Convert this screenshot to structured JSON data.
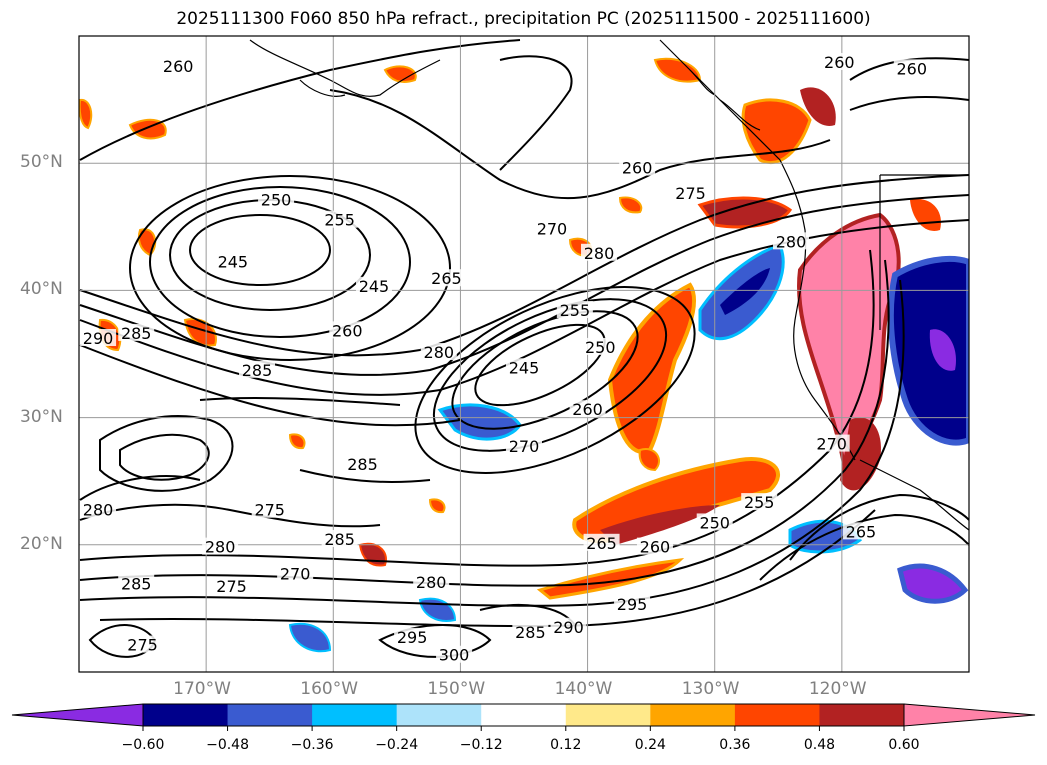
{
  "title": "2025111300 F060 850 hPa refract., precipitation PC (2025111500 - 2025111600)",
  "map": {
    "lon_range": [
      -180,
      -110
    ],
    "lat_range": [
      10,
      60
    ],
    "lat_ticks": [
      {
        "value": 50,
        "label": "50°N"
      },
      {
        "value": 40,
        "label": "40°N"
      },
      {
        "value": 30,
        "label": "30°N"
      },
      {
        "value": 20,
        "label": "20°N"
      }
    ],
    "lon_ticks": [
      {
        "value": -170,
        "label": "170°W"
      },
      {
        "value": -160,
        "label": "160°W"
      },
      {
        "value": -150,
        "label": "150°W"
      },
      {
        "value": -140,
        "label": "140°W"
      },
      {
        "value": -130,
        "label": "130°W"
      },
      {
        "value": -120,
        "label": "120°W"
      }
    ],
    "gridlines": true,
    "contour_labels": [
      {
        "text": "260",
        "lon": -172.2,
        "lat": 57.5
      },
      {
        "text": "260",
        "lon": -120.2,
        "lat": 57.8
      },
      {
        "text": "260",
        "lon": -114.5,
        "lat": 57.3
      },
      {
        "text": "250",
        "lon": -164.5,
        "lat": 47.0
      },
      {
        "text": "255",
        "lon": -159.5,
        "lat": 45.4
      },
      {
        "text": "245",
        "lon": -167.9,
        "lat": 42.1
      },
      {
        "text": "245",
        "lon": -156.8,
        "lat": 40.2
      },
      {
        "text": "265",
        "lon": -151.1,
        "lat": 40.8
      },
      {
        "text": "260",
        "lon": -158.9,
        "lat": 36.7
      },
      {
        "text": "270",
        "lon": -142.8,
        "lat": 44.7
      },
      {
        "text": "280",
        "lon": -139.1,
        "lat": 42.8
      },
      {
        "text": "260",
        "lon": -136.1,
        "lat": 49.5
      },
      {
        "text": "275",
        "lon": -131.9,
        "lat": 47.5
      },
      {
        "text": "280",
        "lon": -124.0,
        "lat": 43.7
      },
      {
        "text": "285",
        "lon": -166.0,
        "lat": 33.6
      },
      {
        "text": "280",
        "lon": -151.7,
        "lat": 35.0
      },
      {
        "text": "255",
        "lon": -141.0,
        "lat": 38.3
      },
      {
        "text": "245",
        "lon": -145.0,
        "lat": 33.8
      },
      {
        "text": "250",
        "lon": -139.0,
        "lat": 35.4
      },
      {
        "text": "260",
        "lon": -140.0,
        "lat": 30.5
      },
      {
        "text": "270",
        "lon": -145.0,
        "lat": 27.6
      },
      {
        "text": "285",
        "lon": -157.7,
        "lat": 26.2
      },
      {
        "text": "275",
        "lon": -165.0,
        "lat": 22.6
      },
      {
        "text": "280",
        "lon": -168.9,
        "lat": 19.7
      },
      {
        "text": "285",
        "lon": -159.5,
        "lat": 20.3
      },
      {
        "text": "270",
        "lon": -163.0,
        "lat": 17.6
      },
      {
        "text": "275",
        "lon": -168.0,
        "lat": 16.6
      },
      {
        "text": "280",
        "lon": -152.3,
        "lat": 16.9
      },
      {
        "text": "295",
        "lon": -153.8,
        "lat": 12.6
      },
      {
        "text": "300",
        "lon": -150.5,
        "lat": 11.2
      },
      {
        "text": "285",
        "lon": -144.5,
        "lat": 13.0
      },
      {
        "text": "290",
        "lon": -141.5,
        "lat": 13.4
      },
      {
        "text": "295",
        "lon": -136.5,
        "lat": 15.2
      },
      {
        "text": "265",
        "lon": -138.9,
        "lat": 20.0
      },
      {
        "text": "260",
        "lon": -134.7,
        "lat": 19.7
      },
      {
        "text": "250",
        "lon": -130.0,
        "lat": 21.6
      },
      {
        "text": "255",
        "lon": -126.5,
        "lat": 23.2
      },
      {
        "text": "270",
        "lon": -120.8,
        "lat": 27.8
      },
      {
        "text": "265",
        "lon": -118.5,
        "lat": 20.9
      },
      {
        "text": "275",
        "lon": -175.0,
        "lat": 12.0
      },
      {
        "text": "285",
        "lon": -175.5,
        "lat": 16.8
      },
      {
        "text": "290",
        "lon": -178.5,
        "lat": 36.1
      },
      {
        "text": "285",
        "lon": -175.5,
        "lat": 36.5
      },
      {
        "text": "280",
        "lon": -178.5,
        "lat": 22.6
      }
    ]
  },
  "colorbar": {
    "boundaries": [
      -0.6,
      -0.48,
      -0.36,
      -0.24,
      -0.12,
      0.12,
      0.24,
      0.36,
      0.48,
      0.6
    ],
    "tick_labels": [
      "−0.60",
      "−0.48",
      "−0.36",
      "−0.24",
      "−0.12",
      "0.12",
      "0.24",
      "0.36",
      "0.48",
      "0.60"
    ],
    "colors": [
      "#8A2BE2",
      "#00008B",
      "#3A5BD0",
      "#00BFFF",
      "#ADE3FA",
      "#FFFFFF",
      "#FFE98A",
      "#FFA500",
      "#FF4500",
      "#B22222",
      "#FF82A8"
    ],
    "extend": "both"
  },
  "styles": {
    "contour_color": "#000000",
    "coast_color": "#000000",
    "grid_color": "#9a9a9a"
  }
}
